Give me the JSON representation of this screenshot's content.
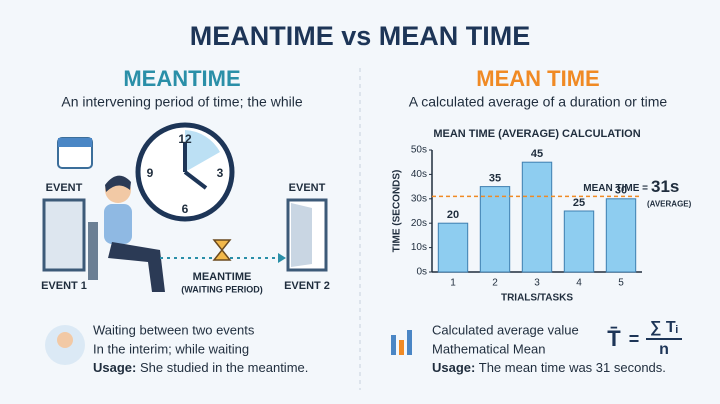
{
  "title": "MEANTIME vs MEAN TIME",
  "left": {
    "heading": "MEANTIME",
    "subtitle": "An intervening period of time; the while",
    "clock_numbers": [
      "12",
      "3",
      "6",
      "9"
    ],
    "event_left": "EVENT",
    "event_left_name": "EVENT 1",
    "event_right": "EVENT",
    "event_right_name": "EVENT 2",
    "wait_label": "MEANTIME",
    "wait_note": "(WAITING PERIOD)",
    "lines": [
      "Waiting between two events",
      "In the interim; while waiting"
    ],
    "usage_label": "Usage:",
    "usage_text": "She studied in the meantime."
  },
  "right": {
    "heading": "MEAN TIME",
    "subtitle": "A calculated average of a duration or time",
    "lines": [
      "Calculated average value",
      "Mathematical Mean"
    ],
    "usage_label": "Usage:",
    "usage_text": "The mean time was 31 seconds.",
    "formula": {
      "lhs": "T̄",
      "eq": "=",
      "num": "∑ Tᵢ",
      "den": "n"
    }
  },
  "chart_data": {
    "type": "bar",
    "title": "MEAN TIME (AVERAGE) CALCULATION",
    "y_label": "TIME (SECONDS)",
    "x_label": "TRIALS/TASKS",
    "categories": [
      "1",
      "2",
      "3",
      "4",
      "5"
    ],
    "values": [
      20,
      35,
      45,
      25,
      30
    ],
    "color": "#8ecdf0",
    "ylim": [
      0,
      50
    ],
    "yticks": [
      {
        "value": 0,
        "label": "0s"
      },
      {
        "value": 10,
        "label": "10s"
      },
      {
        "value": 20,
        "label": "20s"
      },
      {
        "value": 30,
        "label": "30s"
      },
      {
        "value": 40,
        "label": "40s"
      },
      {
        "value": 50,
        "label": "50s"
      }
    ],
    "grid": false,
    "mean": {
      "value": 31,
      "label": "31s",
      "prefix": "MEAN TIME =",
      "note": "(AVERAGE)",
      "color": "#f08a24"
    }
  }
}
